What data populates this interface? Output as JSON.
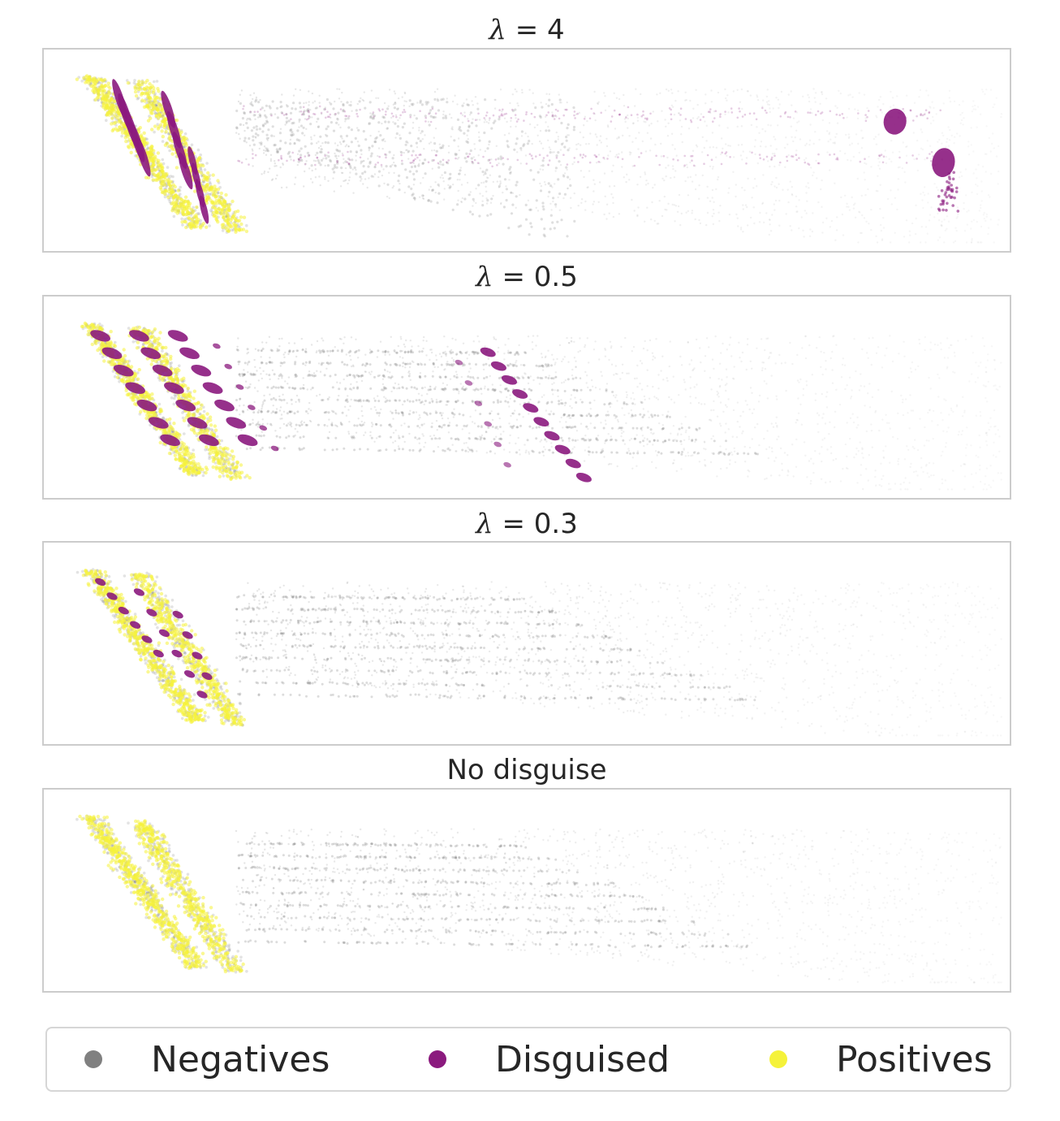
{
  "chart_data": [
    {
      "type": "scatter",
      "title_prefix": "λ",
      "title_value": "= 4",
      "title_plain": "",
      "disguised_layout": "far-right",
      "series": [
        {
          "name": "Negatives",
          "color": "#808080"
        },
        {
          "name": "Disguised",
          "color": "#8b1a7e"
        },
        {
          "name": "Positives",
          "color": "#f5f23a"
        }
      ],
      "xlabel": "",
      "ylabel": "",
      "grid": false
    },
    {
      "type": "scatter",
      "title_prefix": "λ",
      "title_value": "= 0.5",
      "title_plain": "",
      "disguised_layout": "middle",
      "series": [
        {
          "name": "Negatives",
          "color": "#808080"
        },
        {
          "name": "Disguised",
          "color": "#8b1a7e"
        },
        {
          "name": "Positives",
          "color": "#f5f23a"
        }
      ],
      "xlabel": "",
      "ylabel": "",
      "grid": false
    },
    {
      "type": "scatter",
      "title_prefix": "λ",
      "title_value": "= 0.3",
      "title_plain": "",
      "disguised_layout": "left-cluster",
      "series": [
        {
          "name": "Negatives",
          "color": "#808080"
        },
        {
          "name": "Disguised",
          "color": "#8b1a7e"
        },
        {
          "name": "Positives",
          "color": "#f5f23a"
        }
      ],
      "xlabel": "",
      "ylabel": "",
      "grid": false
    },
    {
      "type": "scatter",
      "title_prefix": "",
      "title_value": "",
      "title_plain": "No disguise",
      "disguised_layout": "none",
      "series": [
        {
          "name": "Negatives",
          "color": "#808080"
        },
        {
          "name": "Positives",
          "color": "#f5f23a"
        }
      ],
      "xlabel": "",
      "ylabel": "",
      "grid": false
    }
  ],
  "legend": {
    "placement": "bottom",
    "items": [
      {
        "label": "Negatives",
        "color": "#808080"
      },
      {
        "label": "Disguised",
        "color": "#8b1a7e"
      },
      {
        "label": "Positives",
        "color": "#f5f23a"
      }
    ]
  }
}
